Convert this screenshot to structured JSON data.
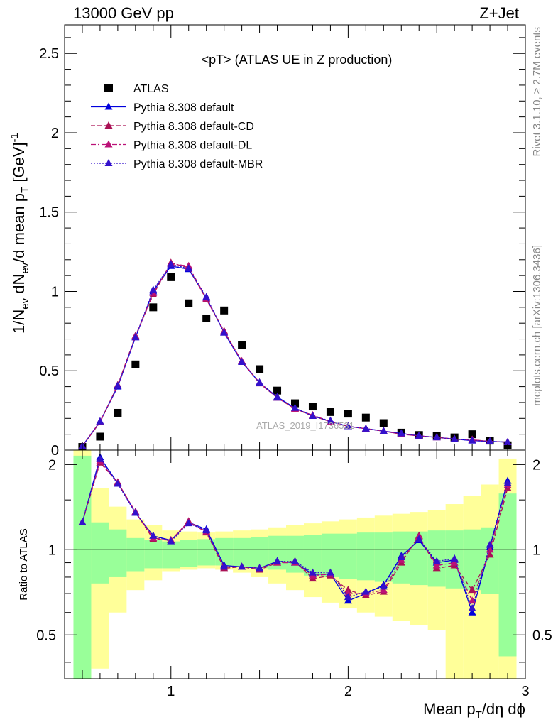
{
  "header": {
    "left": "13000 GeV pp",
    "right": "Z+Jet"
  },
  "plot_title": "<pT> (ATLAS UE in Z production)",
  "side_labels": {
    "rivet": "Rivet 3.1.10, ≥ 2.7M events",
    "mcplots": "mcplots.cern.ch [arXiv:1306.3436]"
  },
  "watermark": "ATLAS_2019_I1736531",
  "axes": {
    "ylabel_main": "1/N_ev dN_ev/d mean p_T [GeV]^-1",
    "ylabel_ratio": "Ratio to ATLAS",
    "xlabel": "Mean p_T/dη dϕ"
  },
  "colors": {
    "data": "#000000",
    "default": "#0000dd",
    "cd": "#aa1155",
    "dl": "#bb1177",
    "mbr": "#3311cc",
    "band_inner": "#99ff99",
    "band_outer": "#ffff99"
  },
  "chart_data": [
    {
      "type": "scatter",
      "panel": "main",
      "x": [
        0.5,
        0.6,
        0.7,
        0.8,
        0.9,
        1.0,
        1.1,
        1.2,
        1.3,
        1.4,
        1.5,
        1.6,
        1.7,
        1.8,
        1.9,
        2.0,
        2.1,
        2.2,
        2.3,
        2.4,
        2.5,
        2.6,
        2.7,
        2.8,
        2.9
      ],
      "xlim": [
        0.4,
        3.0
      ],
      "ylim": [
        0,
        2.68
      ],
      "yticks": [
        0,
        0.5,
        1,
        1.5,
        2,
        2.5
      ],
      "xticks": [
        1,
        2,
        3
      ],
      "series": [
        {
          "name": "ATLAS",
          "style": "data",
          "marker": "square",
          "values": [
            0.02,
            0.085,
            0.235,
            0.54,
            0.9,
            1.09,
            0.925,
            0.83,
            0.88,
            0.66,
            0.51,
            0.375,
            0.295,
            0.275,
            0.24,
            0.23,
            0.205,
            0.17,
            0.11,
            0.095,
            0.09,
            0.08,
            0.1,
            0.06,
            0.03
          ]
        },
        {
          "name": "Pythia 8.308 default",
          "style": "default",
          "marker": "triangle",
          "line": "solid",
          "values": [
            0.025,
            0.18,
            0.4,
            0.71,
            1.0,
            1.16,
            1.14,
            0.96,
            0.74,
            0.555,
            0.425,
            0.335,
            0.265,
            0.215,
            0.18,
            0.15,
            0.135,
            0.12,
            0.105,
            0.09,
            0.08,
            0.07,
            0.06,
            0.055,
            0.05
          ]
        },
        {
          "name": "Pythia 8.308 default-CD",
          "style": "cd",
          "marker": "triangle",
          "line": "dashed",
          "values": [
            0.025,
            0.175,
            0.41,
            0.72,
            0.98,
            1.18,
            1.15,
            0.95,
            0.75,
            0.56,
            0.42,
            0.33,
            0.26,
            0.215,
            0.18,
            0.15,
            0.135,
            0.12,
            0.1,
            0.09,
            0.08,
            0.07,
            0.065,
            0.055,
            0.05
          ]
        },
        {
          "name": "Pythia 8.308 default-DL",
          "style": "dl",
          "marker": "triangle",
          "line": "dashdot",
          "values": [
            0.025,
            0.18,
            0.405,
            0.715,
            0.99,
            1.175,
            1.16,
            0.955,
            0.745,
            0.56,
            0.425,
            0.33,
            0.26,
            0.22,
            0.18,
            0.15,
            0.135,
            0.12,
            0.1,
            0.09,
            0.08,
            0.07,
            0.065,
            0.055,
            0.05
          ]
        },
        {
          "name": "Pythia 8.308 default-MBR",
          "style": "mbr",
          "marker": "triangle",
          "line": "dotted",
          "values": [
            0.025,
            0.18,
            0.405,
            0.71,
            1.01,
            1.17,
            1.145,
            0.965,
            0.74,
            0.555,
            0.425,
            0.33,
            0.265,
            0.215,
            0.185,
            0.15,
            0.135,
            0.12,
            0.105,
            0.09,
            0.08,
            0.07,
            0.06,
            0.055,
            0.05
          ]
        }
      ]
    },
    {
      "type": "line",
      "panel": "ratio",
      "x": [
        0.5,
        0.6,
        0.7,
        0.8,
        0.9,
        1.0,
        1.1,
        1.2,
        1.3,
        1.4,
        1.5,
        1.6,
        1.7,
        1.8,
        1.9,
        2.0,
        2.1,
        2.2,
        2.3,
        2.4,
        2.5,
        2.6,
        2.7,
        2.8,
        2.9
      ],
      "xlim": [
        0.4,
        3.0
      ],
      "ylim": [
        0.35,
        2.25
      ],
      "yticks": [
        0.5,
        1,
        2
      ],
      "reference_line": 1,
      "bands": {
        "x_edges": [
          0.45,
          0.55,
          0.65,
          0.75,
          0.85,
          0.95,
          1.05,
          1.15,
          1.25,
          1.35,
          1.45,
          1.55,
          1.65,
          1.75,
          1.85,
          1.95,
          2.05,
          2.15,
          2.25,
          2.35,
          2.45,
          2.55,
          2.65,
          2.75,
          2.85,
          2.95
        ],
        "inner": [
          [
            0.35,
            2.15
          ],
          [
            0.76,
            1.25
          ],
          [
            0.8,
            1.18
          ],
          [
            0.84,
            1.1
          ],
          [
            0.86,
            1.08
          ],
          [
            0.86,
            1.07
          ],
          [
            0.87,
            1.08
          ],
          [
            0.88,
            1.09
          ],
          [
            0.88,
            1.1
          ],
          [
            0.87,
            1.1
          ],
          [
            0.86,
            1.11
          ],
          [
            0.85,
            1.12
          ],
          [
            0.83,
            1.12
          ],
          [
            0.81,
            1.13
          ],
          [
            0.8,
            1.14
          ],
          [
            0.79,
            1.14
          ],
          [
            0.78,
            1.15
          ],
          [
            0.77,
            1.15
          ],
          [
            0.76,
            1.16
          ],
          [
            0.75,
            1.16
          ],
          [
            0.74,
            1.17
          ],
          [
            0.73,
            1.17
          ],
          [
            0.72,
            1.18
          ],
          [
            0.7,
            1.2
          ],
          [
            0.42,
            1.58
          ]
        ],
        "outer": [
          [
            0.35,
            2.3
          ],
          [
            0.38,
            1.65
          ],
          [
            0.6,
            1.42
          ],
          [
            0.72,
            1.28
          ],
          [
            0.78,
            1.22
          ],
          [
            0.84,
            1.17
          ],
          [
            0.85,
            1.16
          ],
          [
            0.86,
            1.15
          ],
          [
            0.85,
            1.16
          ],
          [
            0.83,
            1.17
          ],
          [
            0.8,
            1.18
          ],
          [
            0.76,
            1.2
          ],
          [
            0.72,
            1.22
          ],
          [
            0.68,
            1.24
          ],
          [
            0.65,
            1.26
          ],
          [
            0.62,
            1.28
          ],
          [
            0.6,
            1.3
          ],
          [
            0.58,
            1.32
          ],
          [
            0.56,
            1.34
          ],
          [
            0.54,
            1.36
          ],
          [
            0.52,
            1.38
          ],
          [
            0.35,
            1.45
          ],
          [
            0.35,
            1.55
          ],
          [
            0.35,
            1.7
          ],
          [
            0.35,
            2.1
          ]
        ]
      },
      "series": [
        {
          "name": "Pythia 8.308 default",
          "style": "default",
          "line": "solid",
          "values": [
            1.25,
            2.12,
            1.72,
            1.35,
            1.12,
            1.08,
            1.25,
            1.18,
            0.88,
            0.87,
            0.86,
            0.91,
            0.9,
            0.82,
            0.82,
            0.66,
            0.7,
            0.75,
            0.95,
            1.08,
            0.9,
            0.92,
            0.6,
            1.02,
            1.75
          ]
        },
        {
          "name": "Pythia 8.308 default-CD",
          "style": "cd",
          "line": "dashed",
          "values": [
            1.25,
            2.03,
            1.73,
            1.36,
            1.09,
            1.08,
            1.26,
            1.15,
            0.86,
            0.87,
            0.85,
            0.9,
            0.91,
            0.79,
            0.81,
            0.72,
            0.69,
            0.71,
            0.9,
            1.12,
            0.86,
            0.88,
            0.72,
            0.96,
            1.65
          ]
        },
        {
          "name": "Pythia 8.308 default-DL",
          "style": "dl",
          "line": "dashdot",
          "values": [
            1.25,
            2.06,
            1.72,
            1.36,
            1.1,
            1.08,
            1.25,
            1.16,
            0.87,
            0.87,
            0.86,
            0.9,
            0.9,
            0.81,
            0.82,
            0.7,
            0.7,
            0.72,
            0.92,
            1.11,
            0.88,
            0.9,
            0.66,
            1.0,
            1.69
          ]
        },
        {
          "name": "Pythia 8.308 default-MBR",
          "style": "mbr",
          "line": "dotted",
          "values": [
            1.25,
            2.09,
            1.71,
            1.35,
            1.12,
            1.07,
            1.24,
            1.17,
            0.87,
            0.87,
            0.86,
            0.91,
            0.91,
            0.83,
            0.83,
            0.68,
            0.71,
            0.74,
            0.94,
            1.09,
            0.91,
            0.93,
            0.62,
            1.04,
            1.72
          ]
        }
      ]
    }
  ]
}
